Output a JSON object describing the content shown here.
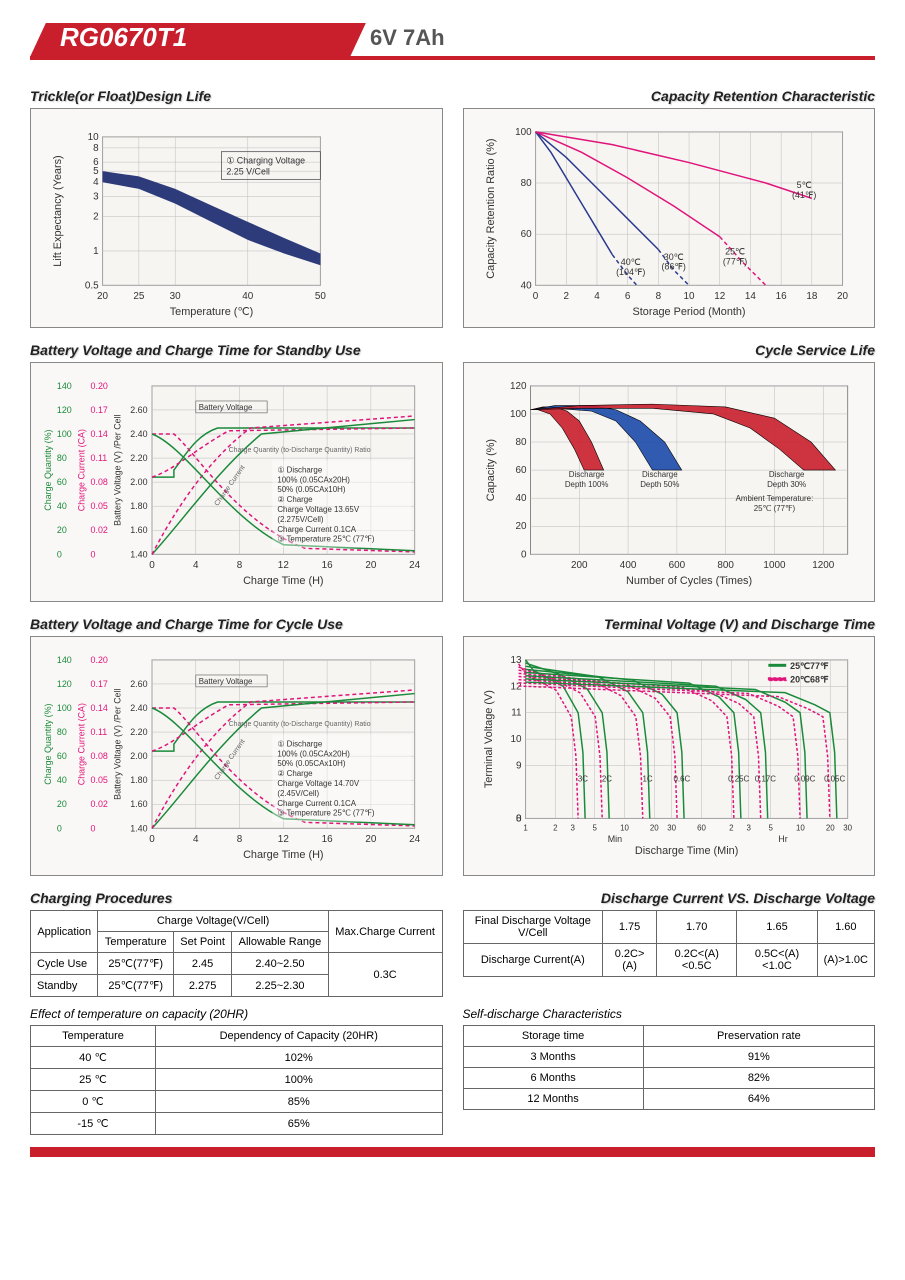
{
  "header": {
    "model": "RG0670T1",
    "spec": "6V  7Ah"
  },
  "charts": {
    "trickle": {
      "title": "Trickle(or Float)Design Life",
      "xlabel": "Temperature (℃)",
      "ylabel": "Lift  Expectancy (Years)",
      "xticks": [
        "20",
        "25",
        "30",
        "40",
        "50"
      ],
      "yticks": [
        "0.5",
        "1",
        "2",
        "3",
        "4",
        "5",
        "6",
        "8",
        "10"
      ],
      "band_fill": "#2d3b7a",
      "note": "① Charging Voltage\n2.25 V/Cell",
      "upper": [
        [
          20,
          5.0
        ],
        [
          25,
          4.5
        ],
        [
          30,
          3.5
        ],
        [
          35,
          2.5
        ],
        [
          40,
          1.8
        ],
        [
          45,
          1.3
        ],
        [
          50,
          0.95
        ]
      ],
      "lower": [
        [
          20,
          4.0
        ],
        [
          25,
          3.5
        ],
        [
          30,
          2.6
        ],
        [
          35,
          1.8
        ],
        [
          40,
          1.25
        ],
        [
          45,
          0.95
        ],
        [
          50,
          0.75
        ]
      ]
    },
    "retention": {
      "title": "Capacity Retention  Characteristic",
      "xlabel": "Storage Period (Month)",
      "ylabel": "Capacity Retention Ratio (%)",
      "xticks": [
        "0",
        "2",
        "4",
        "6",
        "8",
        "10",
        "12",
        "14",
        "16",
        "18",
        "20"
      ],
      "yticks": [
        "40",
        "60",
        "80",
        "100"
      ],
      "curves": [
        {
          "label": "40℃\n(104℉)",
          "color": "#2a3a8f",
          "dash": false,
          "pts": [
            [
              0,
              100
            ],
            [
              1,
              92
            ],
            [
              2,
              82
            ],
            [
              3,
              72
            ],
            [
              4,
              62
            ],
            [
              5,
              52
            ]
          ],
          "dashpts": [
            [
              5,
              52
            ],
            [
              6,
              44
            ],
            [
              6.6,
              40
            ]
          ],
          "lbl_x": 6.2,
          "lbl_y": 48
        },
        {
          "label": "30℃\n(86℉)",
          "color": "#2a3a8f",
          "dash": false,
          "pts": [
            [
              0,
              100
            ],
            [
              2,
              90
            ],
            [
              4,
              78
            ],
            [
              6,
              66
            ],
            [
              8,
              54
            ]
          ],
          "dashpts": [
            [
              8,
              54
            ],
            [
              9,
              46
            ],
            [
              10,
              40
            ]
          ],
          "lbl_x": 9,
          "lbl_y": 50
        },
        {
          "label": "25℃\n(77℉)",
          "color": "#e0147a",
          "dash": false,
          "pts": [
            [
              0,
              100
            ],
            [
              3,
              92
            ],
            [
              6,
              82
            ],
            [
              9,
              71
            ],
            [
              12,
              59
            ]
          ],
          "dashpts": [
            [
              12,
              59
            ],
            [
              13.5,
              49
            ],
            [
              15,
              40
            ]
          ],
          "lbl_x": 13,
          "lbl_y": 52
        },
        {
          "label": "5℃\n(41℉)",
          "color": "#e0147a",
          "dash": false,
          "pts": [
            [
              0,
              100
            ],
            [
              5,
              95
            ],
            [
              10,
              88
            ],
            [
              15,
              80
            ],
            [
              18,
              74
            ]
          ],
          "dashpts": [
            [
              18,
              74
            ]
          ],
          "lbl_x": 17.5,
          "lbl_y": 78
        }
      ]
    },
    "standby": {
      "title": "Battery Voltage and Charge Time for Standby Use",
      "xlabel": "Charge Time (H)",
      "y1": "Charge Quantity (%)",
      "y1ticks": [
        "0",
        "20",
        "40",
        "60",
        "80",
        "100",
        "120",
        "140"
      ],
      "y2": "Charge Current (CA)",
      "y2ticks": [
        "0",
        "0.02",
        "0.05",
        "0.08",
        "0.11",
        "0.14",
        "0.17",
        "0.20"
      ],
      "y3": "Battery Voltage (V) /Per Cell",
      "y3ticks": [
        "1.40",
        "1.60",
        "1.80",
        "2.00",
        "2.20",
        "2.40",
        "2.60"
      ],
      "xticks": [
        "0",
        "4",
        "8",
        "12",
        "16",
        "20",
        "24"
      ],
      "green": "#1a8a3a",
      "pink": "#e0147a",
      "legend": [
        "① Discharge",
        "   100% (0.05CAx20H)",
        "   50% (0.05CAx10H)",
        "② Charge",
        "   Charge Voltage 13.65V",
        "   (2.275V/Cell)",
        "   Charge Current 0.1CA",
        "③ Temperature 25℃ (77℉)"
      ],
      "bv_label": "Battery Voltage",
      "cq_label": "Charge Quantity (to-Discharge Quantity) Ratio",
      "cc_label": "Charge Current"
    },
    "cycle_life": {
      "title": "Cycle Service Life",
      "xlabel": "Number of Cycles (Times)",
      "ylabel": "Capacity (%)",
      "xticks": [
        "200",
        "400",
        "600",
        "800",
        "1000",
        "1200"
      ],
      "yticks": [
        "0",
        "20",
        "40",
        "60",
        "80",
        "100",
        "120"
      ],
      "bands": [
        {
          "label": "Discharge\nDepth 100%",
          "fill": "#c91e2c",
          "upper": [
            [
              0,
              103
            ],
            [
              50,
              105
            ],
            [
              100,
              105
            ],
            [
              150,
              102
            ],
            [
              200,
              95
            ],
            [
              250,
              80
            ],
            [
              300,
              60
            ]
          ],
          "lower": [
            [
              0,
              103
            ],
            [
              30,
              103
            ],
            [
              80,
              100
            ],
            [
              130,
              90
            ],
            [
              180,
              75
            ],
            [
              220,
              60
            ]
          ],
          "lbl_x": 230,
          "lbl_y": 55
        },
        {
          "label": "Discharge\nDepth 50%",
          "fill": "#1a4aa8",
          "upper": [
            [
              0,
              103
            ],
            [
              100,
              106
            ],
            [
              250,
              106
            ],
            [
              350,
              103
            ],
            [
              450,
              95
            ],
            [
              550,
              80
            ],
            [
              620,
              60
            ]
          ],
          "lower": [
            [
              0,
              103
            ],
            [
              100,
              104
            ],
            [
              250,
              102
            ],
            [
              350,
              95
            ],
            [
              430,
              80
            ],
            [
              500,
              60
            ]
          ],
          "lbl_x": 530,
          "lbl_y": 55
        },
        {
          "label": "Discharge\nDepth 30%",
          "fill": "#c91e2c",
          "upper": [
            [
              0,
              103
            ],
            [
              200,
              106
            ],
            [
              500,
              107
            ],
            [
              800,
              105
            ],
            [
              1000,
              97
            ],
            [
              1150,
              80
            ],
            [
              1250,
              60
            ]
          ],
          "lower": [
            [
              0,
              103
            ],
            [
              200,
              104
            ],
            [
              500,
              104
            ],
            [
              750,
              100
            ],
            [
              900,
              90
            ],
            [
              1020,
              75
            ],
            [
              1120,
              60
            ]
          ],
          "lbl_x": 1050,
          "lbl_y": 55
        }
      ],
      "ambient": "Ambient Temperature:\n25℃ (77℉)"
    },
    "cycle_use": {
      "title": "Battery Voltage and Charge Time for Cycle Use",
      "legend": [
        "① Discharge",
        "   100% (0.05CAx20H)",
        "   50% (0.05CAx10H)",
        "② Charge",
        "   Charge Voltage 14.70V",
        "   (2.45V/Cell)",
        "   Charge Current 0.1CA",
        "③ Temperature 25℃ (77℉)"
      ]
    },
    "terminal": {
      "title": "Terminal Voltage (V) and Discharge Time",
      "xlabel": "Discharge Time (Min)",
      "ylabel": "Terminal Voltage (V)",
      "yticks": [
        "0",
        "8",
        "9",
        "10",
        "11",
        "12",
        "13"
      ],
      "legend": [
        {
          "c": "#1a8a3a",
          "t": "25℃77℉"
        },
        {
          "c": "#e0147a",
          "t": "20℃68℉"
        }
      ],
      "xticks_min": [
        "1",
        "2",
        "3",
        "5",
        "10",
        "20",
        "30",
        "60"
      ],
      "xticks_hr": [
        "2",
        "3",
        "5",
        "10",
        "20",
        "30"
      ],
      "curve_labels": [
        "3C",
        "2C",
        "1C",
        "0.6C",
        "0.25C",
        "0.17C",
        "0.09C",
        "0.05C"
      ]
    }
  },
  "tables": {
    "charging": {
      "title": "Charging Procedures",
      "headers": [
        "Application",
        "Charge Voltage(V/Cell)",
        "Max.Charge Current"
      ],
      "sub": [
        "Temperature",
        "Set Point",
        "Allowable Range"
      ],
      "rows": [
        [
          "Cycle Use",
          "25℃(77℉)",
          "2.45",
          "2.40~2.50"
        ],
        [
          "Standby",
          "25℃(77℉)",
          "2.275",
          "2.25~2.30"
        ]
      ],
      "max": "0.3C"
    },
    "discharge_iv": {
      "title": "Discharge Current VS. Discharge Voltage",
      "r1": [
        "Final Discharge Voltage V/Cell",
        "1.75",
        "1.70",
        "1.65",
        "1.60"
      ],
      "r2": [
        "Discharge Current(A)",
        "0.2C>(A)",
        "0.2C<(A)<0.5C",
        "0.5C<(A)<1.0C",
        "(A)>1.0C"
      ]
    },
    "temp_capacity": {
      "title": "Effect of temperature on capacity (20HR)",
      "headers": [
        "Temperature",
        "Dependency of Capacity (20HR)"
      ],
      "rows": [
        [
          "40 ℃",
          "102%"
        ],
        [
          "25 ℃",
          "100%"
        ],
        [
          "0 ℃",
          "85%"
        ],
        [
          "-15 ℃",
          "65%"
        ]
      ]
    },
    "self_discharge": {
      "title": "Self-discharge Characteristics",
      "headers": [
        "Storage time",
        "Preservation rate"
      ],
      "rows": [
        [
          "3 Months",
          "91%"
        ],
        [
          "6 Months",
          "82%"
        ],
        [
          "12 Months",
          "64%"
        ]
      ]
    }
  }
}
